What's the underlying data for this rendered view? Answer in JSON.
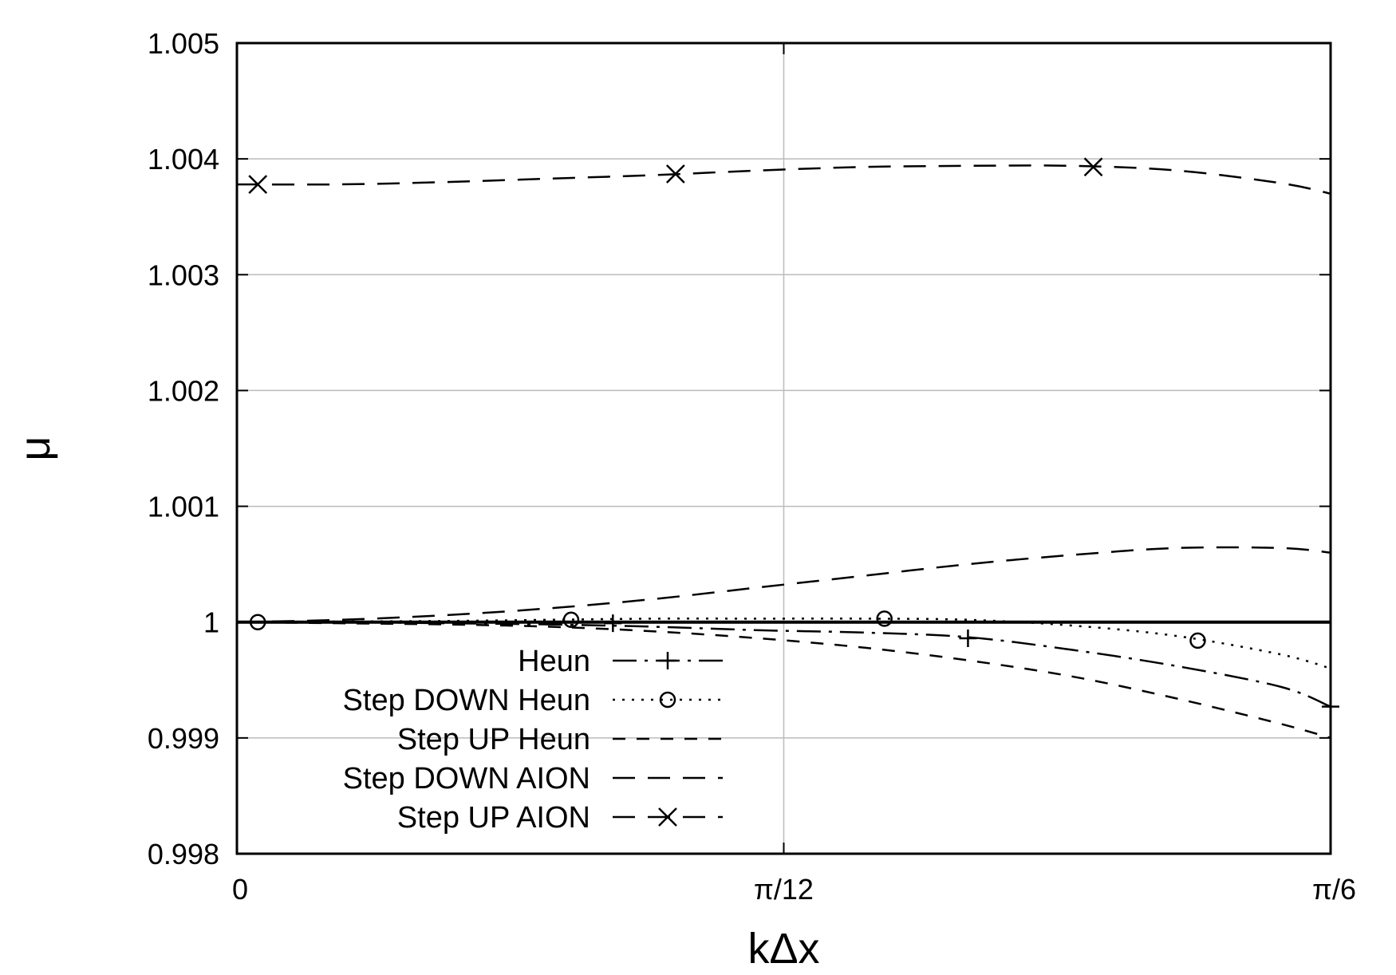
{
  "chart_data": {
    "type": "line",
    "xlabel": "kΔx",
    "ylabel": "μ",
    "xlim": [
      0,
      0.5236
    ],
    "ylim": [
      0.998,
      1.005
    ],
    "grid": true,
    "legend_position": "bottom-left",
    "x_ticks": [
      {
        "value": 0,
        "label": "0"
      },
      {
        "value": 0.2618,
        "label": "π/12"
      },
      {
        "value": 0.5236,
        "label": "π/6"
      }
    ],
    "y_ticks": [
      {
        "value": 0.998,
        "label": "0.998"
      },
      {
        "value": 0.999,
        "label": "0.999"
      },
      {
        "value": 1.0,
        "label": "1"
      },
      {
        "value": 1.001,
        "label": "1.001"
      },
      {
        "value": 1.002,
        "label": "1.002"
      },
      {
        "value": 1.003,
        "label": "1.003"
      },
      {
        "value": 1.004,
        "label": "1.004"
      },
      {
        "value": 1.005,
        "label": "1.005"
      }
    ],
    "reference_line": {
      "y": 1.0
    },
    "series": [
      {
        "name": "Heun",
        "style": "dash-dot",
        "marker": "plus",
        "color": "#000000",
        "x": [
          0.0,
          0.05,
          0.1,
          0.15,
          0.2,
          0.25,
          0.3,
          0.35,
          0.4,
          0.45,
          0.5,
          0.5236
        ],
        "y": [
          1.0,
          1.0,
          0.99999,
          0.99998,
          0.99996,
          0.99993,
          0.99991,
          0.99987,
          0.99976,
          0.99962,
          0.99944,
          0.99927
        ],
        "marker_x": [
          0.18,
          0.35,
          0.5236
        ],
        "marker_y": [
          0.99999,
          0.99986,
          0.99927
        ]
      },
      {
        "name": "Step DOWN Heun",
        "style": "dotted",
        "marker": "circle",
        "color": "#000000",
        "x": [
          0.0,
          0.05,
          0.1,
          0.15,
          0.2,
          0.25,
          0.3,
          0.35,
          0.4,
          0.45,
          0.5,
          0.5236
        ],
        "y": [
          1.0,
          1.000005,
          1.00001,
          1.00002,
          1.00003,
          1.00003,
          1.00003,
          1.00002,
          0.99997,
          0.99988,
          0.99972,
          0.9996
        ],
        "marker_x": [
          0.01,
          0.16,
          0.31,
          0.46
        ],
        "marker_y": [
          1.0,
          1.00002,
          1.00003,
          0.99984
        ]
      },
      {
        "name": "Step UP Heun",
        "style": "short-dash",
        "marker": "none",
        "color": "#000000",
        "x": [
          0.0,
          0.05,
          0.1,
          0.15,
          0.2,
          0.25,
          0.3,
          0.35,
          0.4,
          0.45,
          0.5,
          0.5236
        ],
        "y": [
          1.0,
          0.99999,
          0.99998,
          0.99996,
          0.99992,
          0.99986,
          0.99978,
          0.99967,
          0.99953,
          0.99934,
          0.99912,
          0.999
        ]
      },
      {
        "name": "Step DOWN AION",
        "style": "long-dash",
        "marker": "none",
        "color": "#000000",
        "x": [
          0.0,
          0.05,
          0.1,
          0.15,
          0.2,
          0.25,
          0.3,
          0.35,
          0.4,
          0.45,
          0.5,
          0.5236
        ],
        "y": [
          1.0,
          1.00002,
          1.00006,
          1.00012,
          1.0002,
          1.0003,
          1.0004,
          1.0005,
          1.00058,
          1.00064,
          1.00064,
          1.0006
        ]
      },
      {
        "name": "Step UP AION",
        "style": "long-dash",
        "marker": "cross",
        "color": "#000000",
        "x": [
          0.0,
          0.05,
          0.1,
          0.15,
          0.2,
          0.25,
          0.3,
          0.35,
          0.4,
          0.45,
          0.5,
          0.5236
        ],
        "y": [
          1.00378,
          1.00378,
          1.0038,
          1.00383,
          1.00386,
          1.0039,
          1.00393,
          1.00394,
          1.00394,
          1.0039,
          1.00379,
          1.0037
        ],
        "marker_x": [
          0.01,
          0.21,
          0.41
        ],
        "marker_y": [
          1.00378,
          1.00387,
          1.00393
        ]
      }
    ]
  }
}
